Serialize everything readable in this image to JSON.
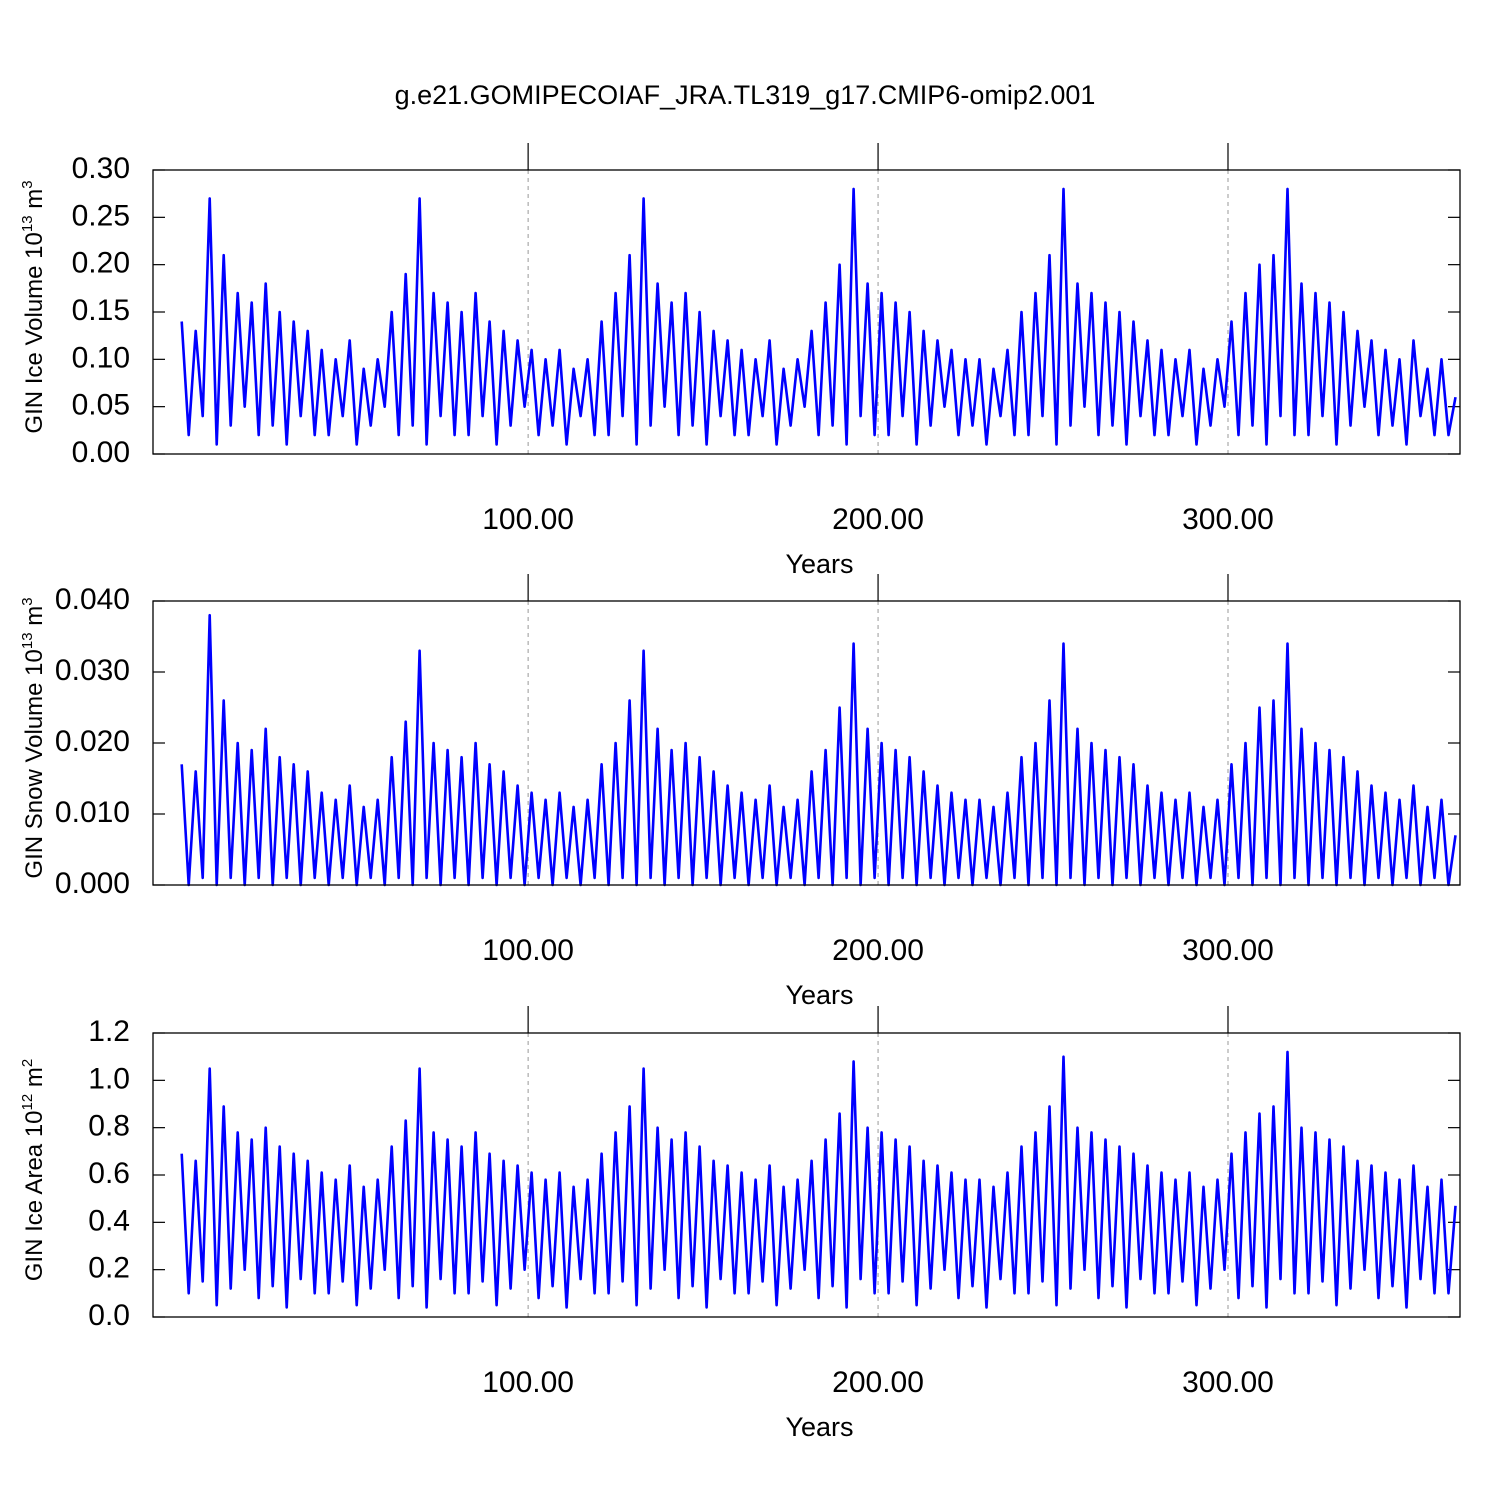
{
  "chart_data": [
    {
      "type": "line",
      "title": "g.e21.GOMIPECOIAF_JRA.TL319_g17.CMIP6-omip2.001",
      "xlabel": "Years",
      "ylabel": [
        "GIN Ice Volume 10",
        "13",
        " m",
        "3"
      ],
      "color": "#0000ff",
      "xgrid": true,
      "xlim": [
        -7.2,
        366.3
      ],
      "xticks": [
        {
          "value": 100,
          "label": "100.00"
        },
        {
          "value": 200,
          "label": "200.00"
        },
        {
          "value": 300,
          "label": "300.00"
        }
      ],
      "ylim": [
        0,
        0.3
      ],
      "yticks": [
        {
          "value": 0,
          "label": "0.00"
        },
        {
          "value": 0.05,
          "label": "0.05"
        },
        {
          "value": 0.1,
          "label": "0.10"
        },
        {
          "value": 0.15,
          "label": "0.15"
        },
        {
          "value": 0.2,
          "label": "0.20"
        },
        {
          "value": 0.25,
          "label": "0.25"
        },
        {
          "value": 0.3,
          "label": "0.30"
        }
      ],
      "x": [
        1,
        3,
        5,
        7,
        9,
        11,
        13,
        15,
        17,
        19,
        21,
        23,
        25,
        27,
        29,
        31,
        33,
        35,
        37,
        39,
        41,
        43,
        45,
        47,
        49,
        51,
        53,
        55,
        57,
        59,
        61,
        63,
        65,
        67,
        69,
        71,
        73,
        75,
        77,
        79,
        81,
        83,
        85,
        87,
        89,
        91,
        93,
        95,
        97,
        99,
        101,
        103,
        105,
        107,
        109,
        111,
        113,
        115,
        117,
        119,
        121,
        123,
        125,
        127,
        129,
        131,
        133,
        135,
        137,
        139,
        141,
        143,
        145,
        147,
        149,
        151,
        153,
        155,
        157,
        159,
        161,
        163,
        165,
        167,
        169,
        171,
        173,
        175,
        177,
        179,
        181,
        183,
        185,
        187,
        189,
        191,
        193,
        195,
        197,
        199,
        201,
        203,
        205,
        207,
        209,
        211,
        213,
        215,
        217,
        219,
        221,
        223,
        225,
        227,
        229,
        231,
        233,
        235,
        237,
        239,
        241,
        243,
        245,
        247,
        249,
        251,
        253,
        255,
        257,
        259,
        261,
        263,
        265,
        267,
        269,
        271,
        273,
        275,
        277,
        279,
        281,
        283,
        285,
        287,
        289,
        291,
        293,
        295,
        297,
        299,
        301,
        303,
        305,
        307,
        309,
        311,
        313,
        315,
        317,
        319,
        321,
        323,
        325,
        327,
        329,
        331,
        333,
        335,
        337,
        339,
        341,
        343,
        345,
        347,
        349,
        351,
        353,
        355,
        357,
        359,
        361,
        363,
        365
      ],
      "values": [
        0.14,
        0.02,
        0.13,
        0.04,
        0.27,
        0.01,
        0.21,
        0.03,
        0.17,
        0.05,
        0.16,
        0.02,
        0.18,
        0.03,
        0.15,
        0.01,
        0.14,
        0.04,
        0.13,
        0.02,
        0.11,
        0.02,
        0.1,
        0.04,
        0.12,
        0.01,
        0.09,
        0.03,
        0.1,
        0.05,
        0.15,
        0.02,
        0.19,
        0.03,
        0.27,
        0.01,
        0.17,
        0.04,
        0.16,
        0.02,
        0.15,
        0.02,
        0.17,
        0.04,
        0.14,
        0.01,
        0.13,
        0.03,
        0.12,
        0.05,
        0.11,
        0.02,
        0.1,
        0.03,
        0.11,
        0.01,
        0.09,
        0.04,
        0.1,
        0.02,
        0.14,
        0.02,
        0.17,
        0.04,
        0.21,
        0.01,
        0.27,
        0.03,
        0.18,
        0.05,
        0.16,
        0.02,
        0.17,
        0.03,
        0.15,
        0.01,
        0.13,
        0.04,
        0.12,
        0.02,
        0.11,
        0.02,
        0.1,
        0.04,
        0.12,
        0.01,
        0.09,
        0.03,
        0.1,
        0.05,
        0.13,
        0.02,
        0.16,
        0.03,
        0.2,
        0.01,
        0.28,
        0.04,
        0.18,
        0.02,
        0.17,
        0.02,
        0.16,
        0.04,
        0.15,
        0.01,
        0.13,
        0.03,
        0.12,
        0.05,
        0.11,
        0.02,
        0.1,
        0.03,
        0.1,
        0.01,
        0.09,
        0.04,
        0.11,
        0.02,
        0.15,
        0.02,
        0.17,
        0.04,
        0.21,
        0.01,
        0.28,
        0.03,
        0.18,
        0.05,
        0.17,
        0.02,
        0.16,
        0.03,
        0.15,
        0.01,
        0.14,
        0.04,
        0.12,
        0.02,
        0.11,
        0.02,
        0.1,
        0.04,
        0.11,
        0.01,
        0.09,
        0.03,
        0.1,
        0.05,
        0.14,
        0.02,
        0.17,
        0.03,
        0.2,
        0.01,
        0.21,
        0.04,
        0.28,
        0.02,
        0.18,
        0.02,
        0.17,
        0.04,
        0.16,
        0.01,
        0.15,
        0.03,
        0.13,
        0.05,
        0.12,
        0.02,
        0.11,
        0.03,
        0.1,
        0.01,
        0.12,
        0.04,
        0.09,
        0.02,
        0.1,
        0.02,
        0.06
      ]
    },
    {
      "type": "line",
      "xlabel": "Years",
      "ylabel": [
        "GIN Snow Volume 10",
        "13",
        " m",
        "3"
      ],
      "color": "#0000ff",
      "xgrid": true,
      "xlim": [
        -7.2,
        366.3
      ],
      "xticks": [
        {
          "value": 100,
          "label": "100.00"
        },
        {
          "value": 200,
          "label": "200.00"
        },
        {
          "value": 300,
          "label": "300.00"
        }
      ],
      "ylim": [
        0,
        0.04
      ],
      "yticks": [
        {
          "value": 0,
          "label": "0.000"
        },
        {
          "value": 0.01,
          "label": "0.010"
        },
        {
          "value": 0.02,
          "label": "0.020"
        },
        {
          "value": 0.03,
          "label": "0.030"
        },
        {
          "value": 0.04,
          "label": "0.040"
        }
      ],
      "x": [
        1,
        3,
        5,
        7,
        9,
        11,
        13,
        15,
        17,
        19,
        21,
        23,
        25,
        27,
        29,
        31,
        33,
        35,
        37,
        39,
        41,
        43,
        45,
        47,
        49,
        51,
        53,
        55,
        57,
        59,
        61,
        63,
        65,
        67,
        69,
        71,
        73,
        75,
        77,
        79,
        81,
        83,
        85,
        87,
        89,
        91,
        93,
        95,
        97,
        99,
        101,
        103,
        105,
        107,
        109,
        111,
        113,
        115,
        117,
        119,
        121,
        123,
        125,
        127,
        129,
        131,
        133,
        135,
        137,
        139,
        141,
        143,
        145,
        147,
        149,
        151,
        153,
        155,
        157,
        159,
        161,
        163,
        165,
        167,
        169,
        171,
        173,
        175,
        177,
        179,
        181,
        183,
        185,
        187,
        189,
        191,
        193,
        195,
        197,
        199,
        201,
        203,
        205,
        207,
        209,
        211,
        213,
        215,
        217,
        219,
        221,
        223,
        225,
        227,
        229,
        231,
        233,
        235,
        237,
        239,
        241,
        243,
        245,
        247,
        249,
        251,
        253,
        255,
        257,
        259,
        261,
        263,
        265,
        267,
        269,
        271,
        273,
        275,
        277,
        279,
        281,
        283,
        285,
        287,
        289,
        291,
        293,
        295,
        297,
        299,
        301,
        303,
        305,
        307,
        309,
        311,
        313,
        315,
        317,
        319,
        321,
        323,
        325,
        327,
        329,
        331,
        333,
        335,
        337,
        339,
        341,
        343,
        345,
        347,
        349,
        351,
        353,
        355,
        357,
        359,
        361,
        363,
        365
      ],
      "values": [
        0.017,
        0.0,
        0.016,
        0.001,
        0.038,
        0.0,
        0.026,
        0.001,
        0.02,
        0.0,
        0.019,
        0.001,
        0.022,
        0.0,
        0.018,
        0.001,
        0.017,
        0.0,
        0.016,
        0.001,
        0.013,
        0.0,
        0.012,
        0.001,
        0.014,
        0.0,
        0.011,
        0.001,
        0.012,
        0.0,
        0.018,
        0.001,
        0.023,
        0.0,
        0.033,
        0.001,
        0.02,
        0.0,
        0.019,
        0.001,
        0.018,
        0.0,
        0.02,
        0.001,
        0.017,
        0.0,
        0.016,
        0.001,
        0.014,
        0.0,
        0.013,
        0.001,
        0.012,
        0.0,
        0.013,
        0.001,
        0.011,
        0.0,
        0.012,
        0.001,
        0.017,
        0.0,
        0.02,
        0.001,
        0.026,
        0.0,
        0.033,
        0.001,
        0.022,
        0.0,
        0.019,
        0.001,
        0.02,
        0.0,
        0.018,
        0.001,
        0.016,
        0.0,
        0.014,
        0.001,
        0.013,
        0.0,
        0.012,
        0.001,
        0.014,
        0.0,
        0.011,
        0.001,
        0.012,
        0.0,
        0.016,
        0.001,
        0.019,
        0.0,
        0.025,
        0.001,
        0.034,
        0.0,
        0.022,
        0.001,
        0.02,
        0.0,
        0.019,
        0.001,
        0.018,
        0.0,
        0.016,
        0.001,
        0.014,
        0.0,
        0.013,
        0.001,
        0.012,
        0.0,
        0.012,
        0.001,
        0.011,
        0.0,
        0.013,
        0.001,
        0.018,
        0.0,
        0.02,
        0.001,
        0.026,
        0.0,
        0.034,
        0.001,
        0.022,
        0.0,
        0.02,
        0.001,
        0.019,
        0.0,
        0.018,
        0.001,
        0.017,
        0.0,
        0.014,
        0.001,
        0.013,
        0.0,
        0.012,
        0.001,
        0.013,
        0.0,
        0.011,
        0.001,
        0.012,
        0.0,
        0.017,
        0.001,
        0.02,
        0.0,
        0.025,
        0.001,
        0.026,
        0.0,
        0.034,
        0.001,
        0.022,
        0.0,
        0.02,
        0.001,
        0.019,
        0.0,
        0.018,
        0.001,
        0.016,
        0.0,
        0.014,
        0.001,
        0.013,
        0.0,
        0.012,
        0.001,
        0.014,
        0.0,
        0.011,
        0.001,
        0.012,
        0.0,
        0.007
      ]
    },
    {
      "type": "line",
      "xlabel": "Years",
      "ylabel": [
        "GIN Ice Area 10",
        "12",
        " m",
        "2"
      ],
      "color": "#0000ff",
      "xgrid": true,
      "xlim": [
        -7.2,
        366.3
      ],
      "xticks": [
        {
          "value": 100,
          "label": "100.00"
        },
        {
          "value": 200,
          "label": "200.00"
        },
        {
          "value": 300,
          "label": "300.00"
        }
      ],
      "ylim": [
        0,
        1.2
      ],
      "yticks": [
        {
          "value": 0,
          "label": "0.0"
        },
        {
          "value": 0.2,
          "label": "0.2"
        },
        {
          "value": 0.4,
          "label": "0.4"
        },
        {
          "value": 0.6,
          "label": "0.6"
        },
        {
          "value": 0.8,
          "label": "0.8"
        },
        {
          "value": 1,
          "label": "1.0"
        },
        {
          "value": 1.2,
          "label": "1.2"
        }
      ],
      "x": [
        1,
        3,
        5,
        7,
        9,
        11,
        13,
        15,
        17,
        19,
        21,
        23,
        25,
        27,
        29,
        31,
        33,
        35,
        37,
        39,
        41,
        43,
        45,
        47,
        49,
        51,
        53,
        55,
        57,
        59,
        61,
        63,
        65,
        67,
        69,
        71,
        73,
        75,
        77,
        79,
        81,
        83,
        85,
        87,
        89,
        91,
        93,
        95,
        97,
        99,
        101,
        103,
        105,
        107,
        109,
        111,
        113,
        115,
        117,
        119,
        121,
        123,
        125,
        127,
        129,
        131,
        133,
        135,
        137,
        139,
        141,
        143,
        145,
        147,
        149,
        151,
        153,
        155,
        157,
        159,
        161,
        163,
        165,
        167,
        169,
        171,
        173,
        175,
        177,
        179,
        181,
        183,
        185,
        187,
        189,
        191,
        193,
        195,
        197,
        199,
        201,
        203,
        205,
        207,
        209,
        211,
        213,
        215,
        217,
        219,
        221,
        223,
        225,
        227,
        229,
        231,
        233,
        235,
        237,
        239,
        241,
        243,
        245,
        247,
        249,
        251,
        253,
        255,
        257,
        259,
        261,
        263,
        265,
        267,
        269,
        271,
        273,
        275,
        277,
        279,
        281,
        283,
        285,
        287,
        289,
        291,
        293,
        295,
        297,
        299,
        301,
        303,
        305,
        307,
        309,
        311,
        313,
        315,
        317,
        319,
        321,
        323,
        325,
        327,
        329,
        331,
        333,
        335,
        337,
        339,
        341,
        343,
        345,
        347,
        349,
        351,
        353,
        355,
        357,
        359,
        361,
        363,
        365
      ],
      "values": [
        0.69,
        0.1,
        0.66,
        0.15,
        1.05,
        0.05,
        0.89,
        0.12,
        0.78,
        0.2,
        0.75,
        0.08,
        0.8,
        0.13,
        0.72,
        0.04,
        0.69,
        0.16,
        0.66,
        0.1,
        0.61,
        0.1,
        0.58,
        0.15,
        0.64,
        0.05,
        0.55,
        0.12,
        0.58,
        0.2,
        0.72,
        0.08,
        0.83,
        0.13,
        1.05,
        0.04,
        0.78,
        0.16,
        0.75,
        0.1,
        0.72,
        0.1,
        0.78,
        0.15,
        0.69,
        0.05,
        0.66,
        0.12,
        0.64,
        0.2,
        0.61,
        0.08,
        0.58,
        0.13,
        0.61,
        0.04,
        0.55,
        0.16,
        0.58,
        0.1,
        0.69,
        0.1,
        0.78,
        0.15,
        0.89,
        0.05,
        1.05,
        0.12,
        0.8,
        0.2,
        0.75,
        0.08,
        0.78,
        0.13,
        0.72,
        0.04,
        0.66,
        0.16,
        0.64,
        0.1,
        0.61,
        0.1,
        0.58,
        0.15,
        0.64,
        0.05,
        0.55,
        0.12,
        0.58,
        0.2,
        0.66,
        0.08,
        0.75,
        0.13,
        0.86,
        0.04,
        1.08,
        0.16,
        0.8,
        0.1,
        0.78,
        0.1,
        0.75,
        0.15,
        0.72,
        0.05,
        0.66,
        0.12,
        0.64,
        0.2,
        0.61,
        0.08,
        0.58,
        0.13,
        0.58,
        0.04,
        0.55,
        0.16,
        0.61,
        0.1,
        0.72,
        0.1,
        0.78,
        0.15,
        0.89,
        0.05,
        1.1,
        0.12,
        0.8,
        0.2,
        0.78,
        0.08,
        0.75,
        0.13,
        0.72,
        0.04,
        0.69,
        0.16,
        0.64,
        0.1,
        0.61,
        0.1,
        0.58,
        0.15,
        0.61,
        0.05,
        0.55,
        0.12,
        0.58,
        0.2,
        0.69,
        0.08,
        0.78,
        0.13,
        0.86,
        0.04,
        0.89,
        0.16,
        1.12,
        0.1,
        0.8,
        0.1,
        0.78,
        0.15,
        0.75,
        0.05,
        0.72,
        0.12,
        0.66,
        0.2,
        0.64,
        0.08,
        0.61,
        0.13,
        0.58,
        0.04,
        0.64,
        0.16,
        0.55,
        0.1,
        0.58,
        0.1,
        0.47
      ]
    }
  ]
}
